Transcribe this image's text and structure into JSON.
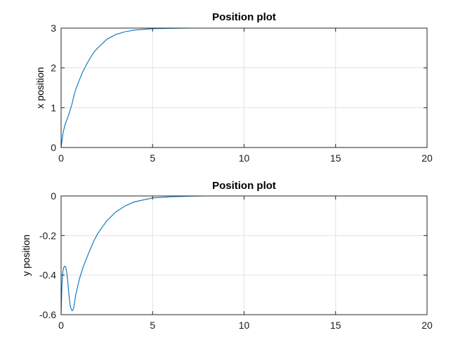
{
  "chart_data": [
    {
      "type": "line",
      "title": "Position plot",
      "xlabel": "",
      "ylabel": "x position",
      "xlim": [
        0,
        20
      ],
      "ylim": [
        0,
        3
      ],
      "xticks": [
        0,
        5,
        10,
        15,
        20
      ],
      "yticks": [
        0,
        1,
        2,
        3
      ],
      "grid": true,
      "x": [
        0,
        0.1,
        0.2,
        0.3,
        0.4,
        0.5,
        0.6,
        0.7,
        0.8,
        1.0,
        1.2,
        1.5,
        1.8,
        2.0,
        2.5,
        3.0,
        3.5,
        4.0,
        5.0,
        6.0,
        7.0,
        8.0,
        10.0,
        12.0,
        15.0,
        20.0
      ],
      "y": [
        0,
        0.35,
        0.55,
        0.68,
        0.8,
        0.95,
        1.1,
        1.3,
        1.46,
        1.7,
        1.92,
        2.18,
        2.4,
        2.5,
        2.72,
        2.84,
        2.91,
        2.95,
        2.985,
        2.995,
        3.0,
        3.0,
        3.0,
        3.0,
        3.0,
        3.0
      ]
    },
    {
      "type": "line",
      "title": "Position plot",
      "xlabel": "",
      "ylabel": "y position",
      "xlim": [
        0,
        20
      ],
      "ylim": [
        -0.6,
        0
      ],
      "xticks": [
        0,
        5,
        10,
        15,
        20
      ],
      "yticks": [
        -0.6,
        -0.4,
        -0.2,
        0
      ],
      "grid": true,
      "x": [
        0,
        0.05,
        0.1,
        0.15,
        0.2,
        0.25,
        0.3,
        0.35,
        0.4,
        0.45,
        0.5,
        0.55,
        0.6,
        0.65,
        0.7,
        0.8,
        0.9,
        1.0,
        1.2,
        1.5,
        1.8,
        2.0,
        2.5,
        3.0,
        3.5,
        4.0,
        5.0,
        6.0,
        7.0,
        8.0,
        10.0,
        15.0,
        20.0
      ],
      "y": [
        -0.6,
        -0.44,
        -0.38,
        -0.36,
        -0.355,
        -0.36,
        -0.38,
        -0.42,
        -0.47,
        -0.52,
        -0.555,
        -0.572,
        -0.58,
        -0.575,
        -0.56,
        -0.5,
        -0.46,
        -0.42,
        -0.36,
        -0.29,
        -0.225,
        -0.19,
        -0.125,
        -0.08,
        -0.05,
        -0.03,
        -0.01,
        -0.004,
        -0.001,
        0,
        0,
        0,
        0
      ]
    }
  ]
}
